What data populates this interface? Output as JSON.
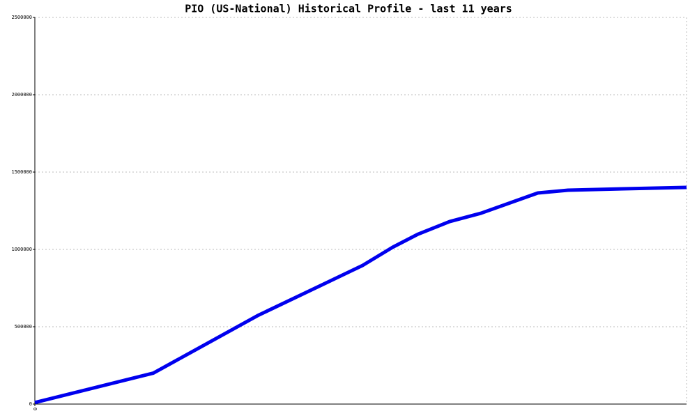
{
  "chart_data": {
    "type": "line",
    "title": "PIO (US-National) Historical Profile - last 11 years",
    "x": [
      0,
      2.0,
      3.76,
      4.82,
      5.53,
      6.04,
      6.47,
      7.0,
      7.53,
      8.49,
      9.0,
      9.94,
      11
    ],
    "series": [
      {
        "color": "#0000ee",
        "values": [
          10000,
          200000,
          572000,
          766000,
          896000,
          1014000,
          1099000,
          1180000,
          1234000,
          1365000,
          1383000,
          1392000,
          1401000
        ]
      }
    ],
    "xlim": [
      0,
      11
    ],
    "xticks": [
      0
    ],
    "ylim": [
      0,
      2500000
    ],
    "yticks": [
      0,
      500000,
      1000000,
      1500000,
      2000000,
      2500000
    ],
    "grid": true
  }
}
